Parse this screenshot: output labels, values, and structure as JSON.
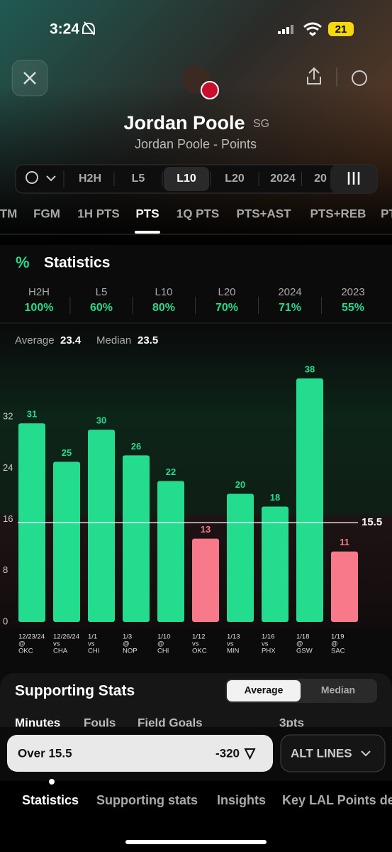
{
  "status_bar": {
    "time": "3:24",
    "battery": "21"
  },
  "header": {
    "name": "Jordan Poole",
    "position": "SG",
    "subtitle": "Jordan Poole - Points"
  },
  "filters": {
    "items": [
      "H2H",
      "L5",
      "L10",
      "L20",
      "2024",
      "20"
    ],
    "selected": 2
  },
  "stat_tabs": {
    "items": [
      "TM",
      "FGM",
      "1H PTS",
      "PTS",
      "1Q PTS",
      "PTS+AST",
      "PTS+REB",
      "PT"
    ],
    "selected": 3
  },
  "statistics": {
    "title": "Statistics",
    "hit_rates": [
      {
        "label": "H2H",
        "value": "100%"
      },
      {
        "label": "L5",
        "value": "60%"
      },
      {
        "label": "L10",
        "value": "80%"
      },
      {
        "label": "L20",
        "value": "70%"
      },
      {
        "label": "2024",
        "value": "71%"
      },
      {
        "label": "2023",
        "value": "55%"
      }
    ],
    "average_label": "Average",
    "average": 23.4,
    "median_label": "Median",
    "median": 23.5
  },
  "chart_data": {
    "type": "bar",
    "categories": [
      [
        "12/23/24",
        "@",
        "OKC"
      ],
      [
        "12/26/24",
        "vs",
        "CHA"
      ],
      [
        "1/1",
        "vs",
        "CHI"
      ],
      [
        "1/3",
        "@",
        "NOP"
      ],
      [
        "1/10",
        "@",
        "CHI"
      ],
      [
        "1/12",
        "vs",
        "OKC"
      ],
      [
        "1/13",
        "vs",
        "MIN"
      ],
      [
        "1/16",
        "vs",
        "PHX"
      ],
      [
        "1/18",
        "@",
        "GSW"
      ],
      [
        "1/19",
        "@",
        "SAC"
      ]
    ],
    "values": [
      31,
      25,
      30,
      26,
      22,
      13,
      20,
      18,
      38,
      11
    ],
    "threshold": 15.5,
    "color_over": "#23dc8d",
    "color_under": "#f7798a",
    "ylim": [
      0,
      40
    ],
    "yticks": [
      0,
      8,
      16,
      24,
      32
    ],
    "grid": false
  },
  "supporting_stats": {
    "title": "Supporting Stats",
    "toggle": [
      "Average",
      "Median"
    ],
    "selected": 0,
    "columns": [
      "Minutes",
      "Fouls",
      "Field Goals",
      "3pts"
    ]
  },
  "bet": {
    "line": "Over 15.5",
    "odds": "-320",
    "alt_lines": "ALT LINES"
  },
  "bottom_tabs": {
    "items": [
      "Statistics",
      "Supporting stats",
      "Insights",
      "Key LAL Points de"
    ],
    "selected": 0
  }
}
